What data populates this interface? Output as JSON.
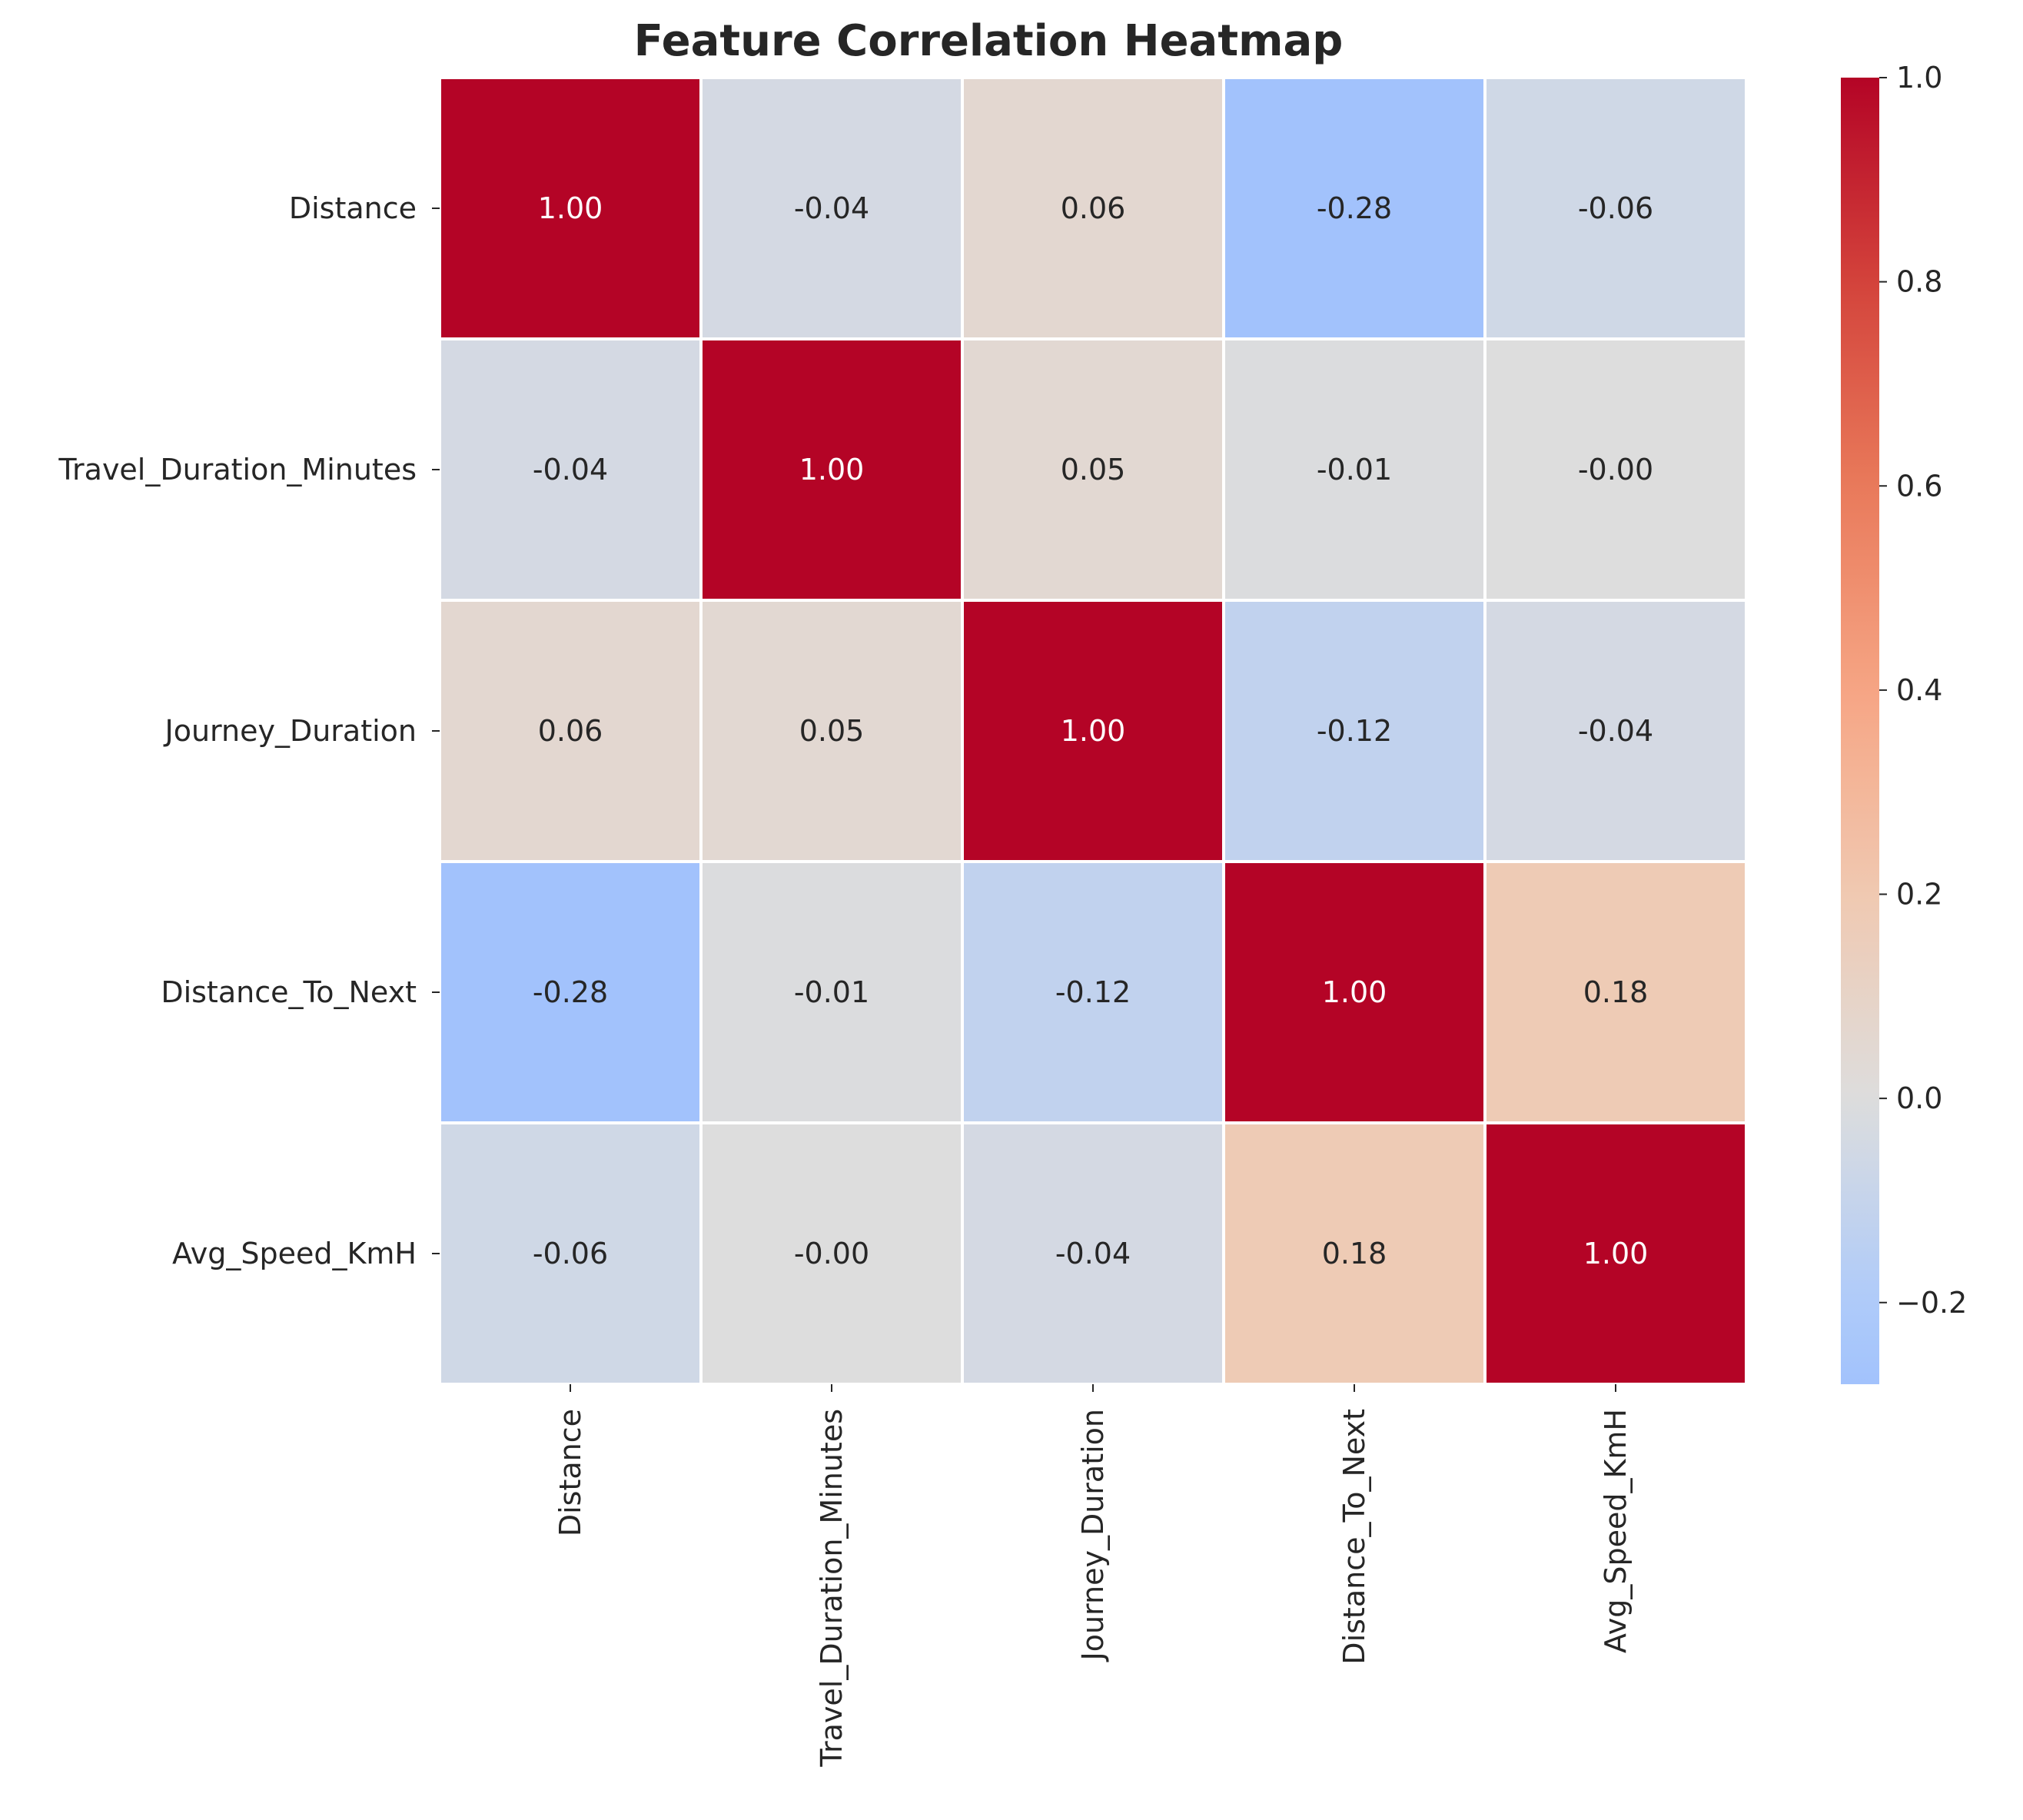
{
  "chart_data": {
    "type": "heatmap",
    "title": "Feature Correlation Heatmap",
    "rows": [
      "Distance",
      "Travel_Duration_Minutes",
      "Journey_Duration",
      "Distance_To_Next",
      "Avg_Speed_KmH"
    ],
    "columns": [
      "Distance",
      "Travel_Duration_Minutes",
      "Journey_Duration",
      "Distance_To_Next",
      "Avg_Speed_KmH"
    ],
    "values": [
      [
        1.0,
        -0.04,
        0.06,
        -0.28,
        -0.06
      ],
      [
        -0.04,
        1.0,
        0.05,
        -0.01,
        -0.0
      ],
      [
        0.06,
        0.05,
        1.0,
        -0.12,
        -0.04
      ],
      [
        -0.28,
        -0.01,
        -0.12,
        1.0,
        0.18
      ],
      [
        -0.06,
        -0.0,
        -0.04,
        0.18,
        1.0
      ]
    ],
    "value_labels": [
      [
        "1.00",
        "-0.04",
        "0.06",
        "-0.28",
        "-0.06"
      ],
      [
        "-0.04",
        "1.00",
        "0.05",
        "-0.01",
        "-0.00"
      ],
      [
        "0.06",
        "0.05",
        "1.00",
        "-0.12",
        "-0.04"
      ],
      [
        "-0.28",
        "-0.01",
        "-0.12",
        "1.00",
        "0.18"
      ],
      [
        "-0.06",
        "-0.00",
        "-0.04",
        "0.18",
        "1.00"
      ]
    ],
    "colormap": "coolwarm",
    "vmin": -0.28,
    "vmax": 1.0,
    "center": 0,
    "colorbar": {
      "ticks": [
        -0.2,
        0.0,
        0.2,
        0.4,
        0.6,
        0.8,
        1.0
      ],
      "tick_labels": [
        "−0.2",
        "0.0",
        "0.2",
        "0.4",
        "0.6",
        "0.8",
        "1.0"
      ],
      "placement": "right"
    },
    "cell_border_color": "#ffffff"
  }
}
